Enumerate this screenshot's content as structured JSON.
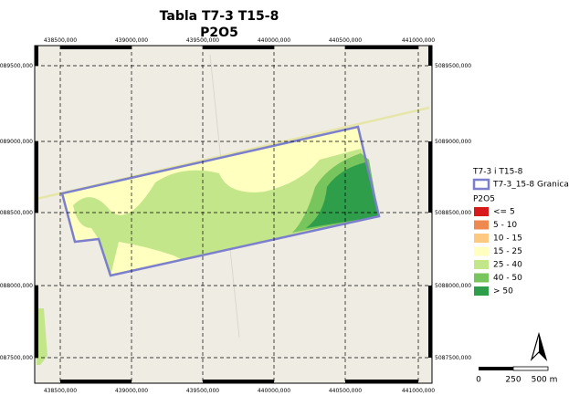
{
  "title": {
    "line1": "Tabla T7-3 T15-8",
    "line2": "P2O5"
  },
  "map": {
    "x_labels": [
      "438500,000",
      "439000,000",
      "439500,000",
      "440000,000",
      "440500,000",
      "441000,000"
    ],
    "y_labels": [
      "5089500,000",
      "5089000,000",
      "5088500,000",
      "5088000,000",
      "5087500,000"
    ]
  },
  "legend": {
    "layer_group": "T7-3 i T15-8",
    "boundary": {
      "label": "T7-3_15-8 Granica",
      "color": "#7b7fcc"
    },
    "classes_title": "P2O5",
    "classes": [
      {
        "label": "<= 5",
        "color": "#d7191c"
      },
      {
        "label": "5 - 10",
        "color": "#ee8a4f"
      },
      {
        "label": "10 - 15",
        "color": "#fdc980"
      },
      {
        "label": "15 - 25",
        "color": "#ffffbf"
      },
      {
        "label": "25 - 40",
        "color": "#c4e68a"
      },
      {
        "label": "40 - 50",
        "color": "#78c45d"
      },
      {
        "label": "> 50",
        "color": "#2e9e4a"
      }
    ]
  },
  "scale_bar": {
    "labels": [
      "0",
      "250",
      "500 m"
    ]
  }
}
